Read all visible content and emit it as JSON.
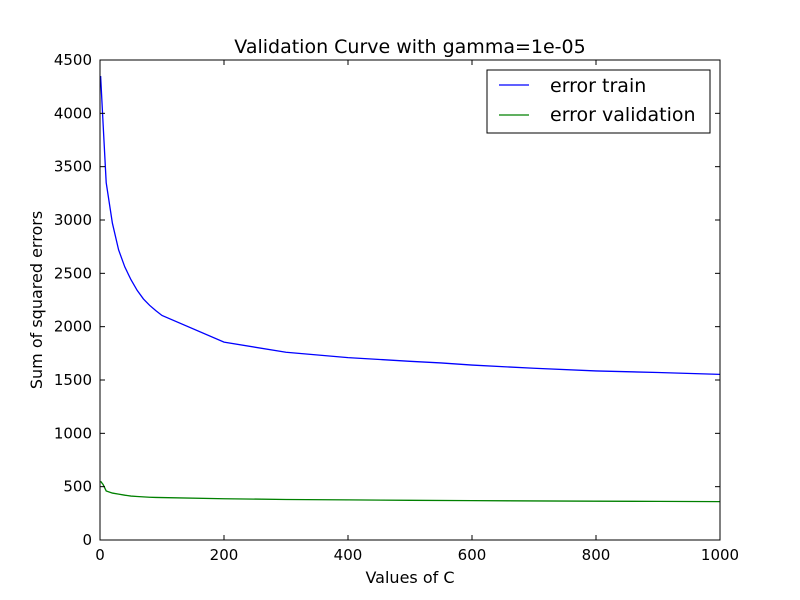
{
  "chart_data": {
    "type": "line",
    "title": "Validation Curve with gamma=1e-05",
    "xlabel": "Values of C",
    "ylabel": "Sum of squared errors",
    "xlim": [
      0,
      1000
    ],
    "ylim": [
      0,
      4500
    ],
    "xticks": [
      0,
      200,
      400,
      600,
      800,
      1000
    ],
    "yticks": [
      0,
      500,
      1000,
      1500,
      2000,
      2500,
      3000,
      3500,
      4000,
      4500
    ],
    "grid": false,
    "legend_position": "top-right",
    "series": [
      {
        "name": "error train",
        "color": "#0000ff",
        "points": [
          [
            1,
            4350
          ],
          [
            5,
            3900
          ],
          [
            10,
            3350
          ],
          [
            20,
            2970
          ],
          [
            30,
            2720
          ],
          [
            40,
            2560
          ],
          [
            50,
            2440
          ],
          [
            60,
            2340
          ],
          [
            70,
            2260
          ],
          [
            80,
            2200
          ],
          [
            90,
            2150
          ],
          [
            100,
            2105
          ],
          [
            200,
            1855
          ],
          [
            300,
            1760
          ],
          [
            400,
            1710
          ],
          [
            500,
            1675
          ],
          [
            550,
            1660
          ],
          [
            600,
            1640
          ],
          [
            700,
            1610
          ],
          [
            800,
            1585
          ],
          [
            900,
            1570
          ],
          [
            1000,
            1553
          ]
        ]
      },
      {
        "name": "error validation",
        "color": "#008000",
        "points": [
          [
            1,
            550
          ],
          [
            5,
            520
          ],
          [
            10,
            460
          ],
          [
            20,
            440
          ],
          [
            30,
            430
          ],
          [
            40,
            420
          ],
          [
            50,
            412
          ],
          [
            60,
            408
          ],
          [
            70,
            404
          ],
          [
            80,
            401
          ],
          [
            90,
            399
          ],
          [
            100,
            398
          ],
          [
            200,
            387
          ],
          [
            300,
            380
          ],
          [
            400,
            376
          ],
          [
            500,
            372
          ],
          [
            600,
            369
          ],
          [
            700,
            366
          ],
          [
            800,
            364
          ],
          [
            900,
            362
          ],
          [
            1000,
            360
          ]
        ]
      }
    ]
  }
}
